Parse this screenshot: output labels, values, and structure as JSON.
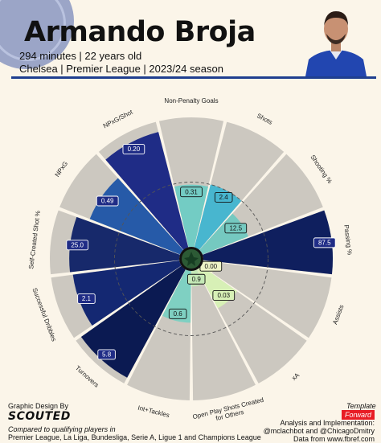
{
  "header": {
    "player_name": "Armando Broja",
    "minutes_age": "294 minutes | 22 years old",
    "team_season": "Chelsea | Premier League | 2023/24 season"
  },
  "colors": {
    "accent": "#1f3f8f",
    "wedge_bg": "#ccc8c0",
    "badge": "#e81d25"
  },
  "chart_data": {
    "type": "polar-bar",
    "categories": [
      "Non-Penalty Goals",
      "Shots",
      "Shooting %",
      "Passing %",
      "Assists",
      "xA",
      "Open Play Shots Created for Others",
      "Int+Tackles",
      "Turnovers",
      "Successful Dribbles",
      "Self-Created Shot %",
      "NPxG",
      "NPxG/Shot"
    ],
    "values": [
      "0.31",
      "2.4",
      "12.5",
      "87.5",
      "0.00",
      "0.03",
      "0.9",
      "0.6",
      "5.8",
      "2.1",
      "25.0",
      "0.49",
      "0.20"
    ],
    "percentiles": [
      48,
      50,
      38,
      100,
      10,
      34,
      12,
      40,
      95,
      83,
      85,
      75,
      92
    ],
    "colors": [
      "#73ccc4",
      "#48b6cf",
      "#75c9c0",
      "#0f1f5e",
      "#eef4c6",
      "#d7f0b6",
      "#c4e8b6",
      "#7fd0c2",
      "#0b1a52",
      "#142872",
      "#17296b",
      "#265aa8",
      "#1f2c86"
    ],
    "reference_circle_percentile": 50,
    "range": [
      0,
      100
    ]
  },
  "footer": {
    "design_label": "Graphic Design By",
    "brand": "SCOUTED",
    "compare_line1": "Compared to qualifying players in",
    "compare_line2": "Premier League, La Liga, Bundesliga, Serie A, Ligue 1 and Champions League",
    "template_label": "Template",
    "template_badge": "Forward",
    "analysis_line1": "Analysis and Implementation:",
    "analysis_line2": "@mclachbot and @ChicagoDmitry",
    "analysis_line3": "Data from www.fbref.com"
  }
}
